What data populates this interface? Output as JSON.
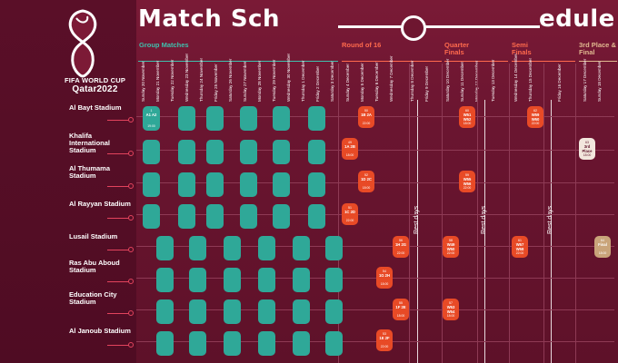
{
  "logo": {
    "line1": "FIFA WORLD CUP",
    "line2": "Qatar2022"
  },
  "title": {
    "left": "Match Sch",
    "right": "edule"
  },
  "colors": {
    "group": "#2fa898",
    "knockout": "#e84a26",
    "final": "#c9a47a",
    "third": "#f2e6dd",
    "accent": "#e3435d"
  },
  "stages": {
    "group": "Group Matches",
    "r16": "Round of 16",
    "qf": "Quarter Finals",
    "sf": "Semi Finals",
    "final": "3rd Place & Final"
  },
  "dates": [
    "Sunday 20 November",
    "Monday 21 November",
    "Tuesday 22 November",
    "Wednesday 23 November",
    "Thursday 24 November",
    "Friday 25 November",
    "Saturday 26 November",
    "Sunday 27 November",
    "Monday 28 November",
    "Tuesday 29 November",
    "Wednesday 30 November",
    "Thursday 1 December",
    "Friday 2 December",
    "Saturday 3 December",
    "Sunday 4 December",
    "Monday 5 December",
    "Tuesday 6 December",
    "Wednesday 7 December",
    "Thursday 8 December",
    "Friday 9 December",
    "Saturday 10 December",
    "Sunday 11 December",
    "Monday 12 December",
    "Tuesday 13 December",
    "Wednesday 14 December",
    "Thursday 15 December",
    "Friday 16 December",
    "Saturday 17 December",
    "Sunday 18 December"
  ],
  "rest_label": "Rest days",
  "stadiums": [
    {
      "name": "Al Bayt Stadium"
    },
    {
      "name": "Khalifa International Stadium"
    },
    {
      "name": "Al Thumama Stadium"
    },
    {
      "name": "Al Rayyan Stadium"
    },
    {
      "name": "Lusail Stadium"
    },
    {
      "name": "Ras Abu Aboud Stadium"
    },
    {
      "name": "Education City Stadium"
    },
    {
      "name": "Al Janoub Stadium"
    }
  ],
  "matches": {
    "albayt_open": {
      "num": "1",
      "code": "A1 A2",
      "time": "19:00"
    },
    "r16_1": {
      "num": "49",
      "code": "1A 2B",
      "time": "18:00"
    },
    "r16_2": {
      "num": "51",
      "code": "1C 2D",
      "time": "22:00"
    },
    "r16_3": {
      "num": "52",
      "code": "1D 2C",
      "time": "18:00"
    },
    "r16_4": {
      "num": "50",
      "code": "1B 2A",
      "time": "22:00"
    },
    "r16_5": {
      "num": "53",
      "code": "1E 2F",
      "time": "22:00"
    },
    "r16_6": {
      "num": "54",
      "code": "1G 2H",
      "time": "18:00"
    },
    "r16_7": {
      "num": "55",
      "code": "1F 2E",
      "time": "18:00"
    },
    "r16_8": {
      "num": "56",
      "code": "1H 2G",
      "time": "22:00"
    },
    "qf_1": {
      "num": "57",
      "code": "W53 W54",
      "time": "18:00"
    },
    "qf_2": {
      "num": "58",
      "code": "W49 W50",
      "time": "22:00"
    },
    "qf_3": {
      "num": "59",
      "code": "W55 W56",
      "time": "22:00"
    },
    "qf_4": {
      "num": "60",
      "code": "W51 W52",
      "time": "18:00"
    },
    "sf_1": {
      "num": "61",
      "code": "W57 W58",
      "time": "22:00"
    },
    "sf_2": {
      "num": "62",
      "code": "W59 W60",
      "time": "22:00"
    },
    "third": {
      "num": "63",
      "code": "3rd Place",
      "time": "18:00"
    },
    "final": {
      "num": "64",
      "code": "Final",
      "time": "18:00"
    }
  }
}
